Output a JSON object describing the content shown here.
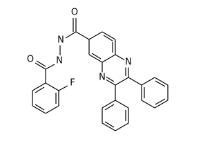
{
  "atoms": {
    "carbonyl_oxygen_1": "O",
    "hydrazide_nitrogen_1": "N",
    "hydrazide_nitrogen_2": "N",
    "carbonyl_oxygen_2": "O",
    "fluorine": "F",
    "ring_nitrogen_1": "N",
    "ring_nitrogen_2": "N"
  }
}
